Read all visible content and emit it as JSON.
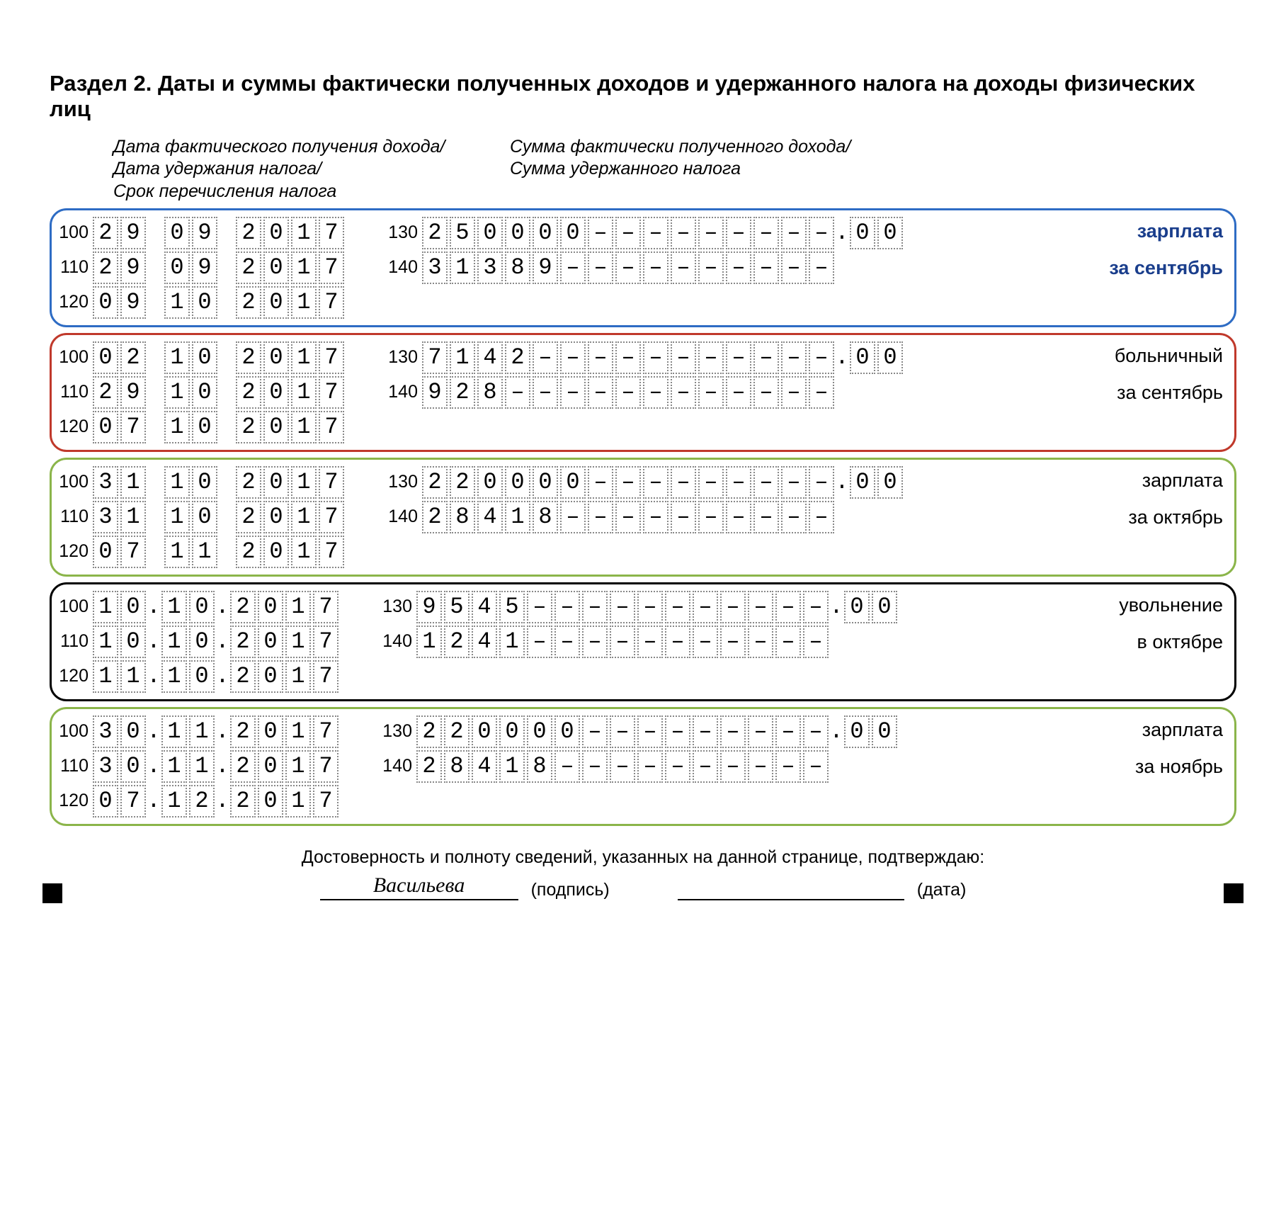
{
  "title": "Раздел 2. Даты и суммы фактически полученных доходов и удержанного налога на доходы физических лиц",
  "subhead_left": "Дата фактического получения дохода/\nДата удержания налога/\nСрок перечисления налога",
  "subhead_right": "Сумма фактически полученного дохода/\nСумма удержанного налога",
  "colors": {
    "blue": "#2e6cc4",
    "red": "#c0392b",
    "green": "#8bb54a",
    "black": "#000000",
    "note_blue": "#1a3e8c"
  },
  "blocks": [
    {
      "border": "blue",
      "note1": "зарплата",
      "note2": "за сентябрь",
      "note_bold": true,
      "note_color": "note_blue",
      "use_dots": false,
      "r100": [
        "2",
        "9",
        "0",
        "9",
        "2",
        "0",
        "1",
        "7"
      ],
      "r110": [
        "2",
        "9",
        "0",
        "9",
        "2",
        "0",
        "1",
        "7"
      ],
      "r120": [
        "0",
        "9",
        "1",
        "0",
        "2",
        "0",
        "1",
        "7"
      ],
      "r130": [
        "2",
        "5",
        "0",
        "0",
        "0",
        "0",
        "–",
        "–",
        "–",
        "–",
        "–",
        "–",
        "–",
        "–",
        "–"
      ],
      "r130_frac": [
        "0",
        "0"
      ],
      "r140": [
        "3",
        "1",
        "3",
        "8",
        "9",
        "–",
        "–",
        "–",
        "–",
        "–",
        "–",
        "–",
        "–",
        "–",
        "–"
      ]
    },
    {
      "border": "red",
      "note1": "больничный",
      "note2": "за сентябрь",
      "note_bold": false,
      "note_color": "black",
      "use_dots": false,
      "r100": [
        "0",
        "2",
        "1",
        "0",
        "2",
        "0",
        "1",
        "7"
      ],
      "r110": [
        "2",
        "9",
        "1",
        "0",
        "2",
        "0",
        "1",
        "7"
      ],
      "r120": [
        "0",
        "7",
        "1",
        "0",
        "2",
        "0",
        "1",
        "7"
      ],
      "r130": [
        "7",
        "1",
        "4",
        "2",
        "–",
        "–",
        "–",
        "–",
        "–",
        "–",
        "–",
        "–",
        "–",
        "–",
        "–"
      ],
      "r130_frac": [
        "0",
        "0"
      ],
      "r140": [
        "9",
        "2",
        "8",
        "–",
        "–",
        "–",
        "–",
        "–",
        "–",
        "–",
        "–",
        "–",
        "–",
        "–",
        "–"
      ]
    },
    {
      "border": "green",
      "note1": "зарплата",
      "note2": "за октябрь",
      "note_bold": false,
      "note_color": "black",
      "use_dots": false,
      "r100": [
        "3",
        "1",
        "1",
        "0",
        "2",
        "0",
        "1",
        "7"
      ],
      "r110": [
        "3",
        "1",
        "1",
        "0",
        "2",
        "0",
        "1",
        "7"
      ],
      "r120": [
        "0",
        "7",
        "1",
        "1",
        "2",
        "0",
        "1",
        "7"
      ],
      "r130": [
        "2",
        "2",
        "0",
        "0",
        "0",
        "0",
        "–",
        "–",
        "–",
        "–",
        "–",
        "–",
        "–",
        "–",
        "–"
      ],
      "r130_frac": [
        "0",
        "0"
      ],
      "r140": [
        "2",
        "8",
        "4",
        "1",
        "8",
        "–",
        "–",
        "–",
        "–",
        "–",
        "–",
        "–",
        "–",
        "–",
        "–"
      ]
    },
    {
      "border": "black",
      "note1": "увольнение",
      "note2": "в октябре",
      "note_bold": false,
      "note_color": "black",
      "use_dots": true,
      "r100": [
        "1",
        "0",
        "1",
        "0",
        "2",
        "0",
        "1",
        "7"
      ],
      "r110": [
        "1",
        "0",
        "1",
        "0",
        "2",
        "0",
        "1",
        "7"
      ],
      "r120": [
        "1",
        "1",
        "1",
        "0",
        "2",
        "0",
        "1",
        "7"
      ],
      "r130": [
        "9",
        "5",
        "4",
        "5",
        "–",
        "–",
        "–",
        "–",
        "–",
        "–",
        "–",
        "–",
        "–",
        "–",
        "–"
      ],
      "r130_frac": [
        "0",
        "0"
      ],
      "r140": [
        "1",
        "2",
        "4",
        "1",
        "–",
        "–",
        "–",
        "–",
        "–",
        "–",
        "–",
        "–",
        "–",
        "–",
        "–"
      ]
    },
    {
      "border": "green",
      "note1": "зарплата",
      "note2": "за ноябрь",
      "note_bold": false,
      "note_color": "black",
      "use_dots": true,
      "r100": [
        "3",
        "0",
        "1",
        "1",
        "2",
        "0",
        "1",
        "7"
      ],
      "r110": [
        "3",
        "0",
        "1",
        "1",
        "2",
        "0",
        "1",
        "7"
      ],
      "r120": [
        "0",
        "7",
        "1",
        "2",
        "2",
        "0",
        "1",
        "7"
      ],
      "r130": [
        "2",
        "2",
        "0",
        "0",
        "0",
        "0",
        "–",
        "–",
        "–",
        "–",
        "–",
        "–",
        "–",
        "–",
        "–"
      ],
      "r130_frac": [
        "0",
        "0"
      ],
      "r140": [
        "2",
        "8",
        "4",
        "1",
        "8",
        "–",
        "–",
        "–",
        "–",
        "–",
        "–",
        "–",
        "–",
        "–",
        "–"
      ]
    }
  ],
  "footer_text": "Достоверность и полноту сведений, указанных на данной странице, подтверждаю:",
  "signature": "Васильева",
  "sig_label": "(подпись)",
  "date_label": "(дата)",
  "codes": {
    "c100": "100",
    "c110": "110",
    "c120": "120",
    "c130": "130",
    "c140": "140"
  }
}
